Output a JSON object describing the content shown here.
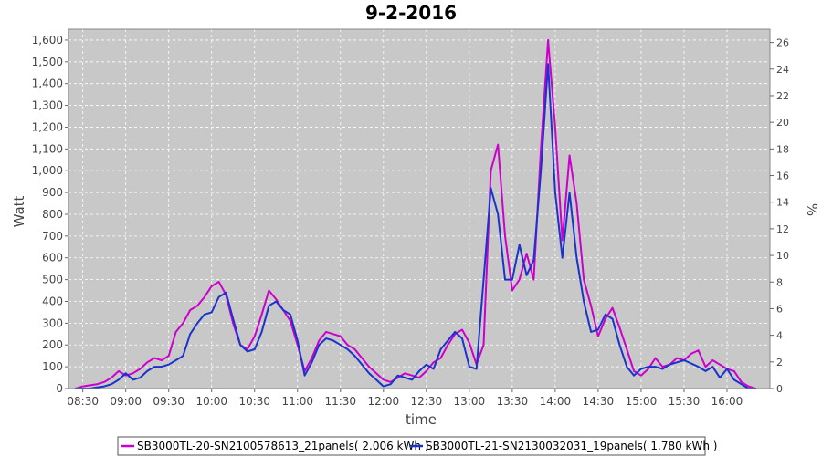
{
  "chart_data": {
    "type": "line",
    "title": "9-2-2016",
    "xlabel": "time",
    "ylabel": "Watt",
    "y2label": "%",
    "ylim": [
      0,
      1650
    ],
    "y2lim": [
      0,
      27
    ],
    "xlim": [
      "08:20",
      "16:30"
    ],
    "x_ticks": [
      "08:30",
      "09:00",
      "09:30",
      "10:00",
      "10:30",
      "11:00",
      "11:30",
      "12:00",
      "12:30",
      "13:00",
      "13:30",
      "14:00",
      "14:30",
      "15:00",
      "15:30",
      "16:00"
    ],
    "y_ticks": [
      "0",
      "100",
      "200",
      "300",
      "400",
      "500",
      "600",
      "700",
      "800",
      "900",
      "1,000",
      "1,100",
      "1,200",
      "1,300",
      "1,400",
      "1,500",
      "1,600"
    ],
    "y2_ticks": [
      "0",
      "2",
      "4",
      "6",
      "8",
      "10",
      "12",
      "14",
      "16",
      "18",
      "20",
      "22",
      "24",
      "26"
    ],
    "grid": true,
    "legend_position": "bottom",
    "plot_background": "#c8c8c8",
    "series": [
      {
        "name": "SB3000TL-20-SN2100578613_21panels( 2.006 kWh )",
        "color": "#cc00cc",
        "x": [
          "08:25",
          "08:30",
          "08:35",
          "08:40",
          "08:45",
          "08:50",
          "08:55",
          "09:00",
          "09:05",
          "09:10",
          "09:15",
          "09:20",
          "09:25",
          "09:30",
          "09:35",
          "09:40",
          "09:45",
          "09:50",
          "09:55",
          "10:00",
          "10:05",
          "10:10",
          "10:15",
          "10:20",
          "10:25",
          "10:30",
          "10:35",
          "10:40",
          "10:45",
          "10:50",
          "10:55",
          "11:00",
          "11:05",
          "11:10",
          "11:15",
          "11:20",
          "11:25",
          "11:30",
          "11:35",
          "11:40",
          "11:45",
          "11:50",
          "11:55",
          "12:00",
          "12:05",
          "12:10",
          "12:15",
          "12:20",
          "12:25",
          "12:30",
          "12:35",
          "12:40",
          "12:45",
          "12:50",
          "12:55",
          "13:00",
          "13:05",
          "13:10",
          "13:15",
          "13:20",
          "13:25",
          "13:30",
          "13:35",
          "13:40",
          "13:45",
          "13:50",
          "13:55",
          "14:00",
          "14:05",
          "14:10",
          "14:15",
          "14:20",
          "14:25",
          "14:30",
          "14:35",
          "14:40",
          "14:45",
          "14:50",
          "14:55",
          "15:00",
          "15:05",
          "15:10",
          "15:15",
          "15:20",
          "15:25",
          "15:30",
          "15:35",
          "15:40",
          "15:45",
          "15:50",
          "15:55",
          "16:00",
          "16:05",
          "16:10",
          "16:15",
          "16:20"
        ],
        "values": [
          0,
          10,
          15,
          20,
          30,
          50,
          80,
          60,
          70,
          90,
          120,
          140,
          130,
          150,
          260,
          300,
          360,
          380,
          420,
          470,
          490,
          430,
          300,
          200,
          180,
          240,
          340,
          450,
          410,
          360,
          310,
          200,
          80,
          140,
          220,
          260,
          250,
          240,
          200,
          180,
          140,
          100,
          70,
          40,
          30,
          50,
          70,
          60,
          50,
          80,
          120,
          140,
          200,
          250,
          270,
          210,
          110,
          200,
          1000,
          1120,
          700,
          450,
          500,
          620,
          500,
          1100,
          1600,
          1200,
          680,
          1070,
          850,
          500,
          380,
          240,
          320,
          370,
          280,
          180,
          80,
          60,
          90,
          140,
          100,
          110,
          140,
          130,
          160,
          175,
          100,
          130,
          110,
          90,
          80,
          30,
          10,
          0
        ]
      },
      {
        "name": "SB3000TL-21-SN2130032031_19panels( 1.780 kWh )",
        "color": "#1a33cc",
        "x": [
          "08:25",
          "08:30",
          "08:35",
          "08:40",
          "08:45",
          "08:50",
          "08:55",
          "09:00",
          "09:05",
          "09:10",
          "09:15",
          "09:20",
          "09:25",
          "09:30",
          "09:35",
          "09:40",
          "09:45",
          "09:50",
          "09:55",
          "10:00",
          "10:05",
          "10:10",
          "10:15",
          "10:20",
          "10:25",
          "10:30",
          "10:35",
          "10:40",
          "10:45",
          "10:50",
          "10:55",
          "11:00",
          "11:05",
          "11:10",
          "11:15",
          "11:20",
          "11:25",
          "11:30",
          "11:35",
          "11:40",
          "11:45",
          "11:50",
          "11:55",
          "12:00",
          "12:05",
          "12:10",
          "12:15",
          "12:20",
          "12:25",
          "12:30",
          "12:35",
          "12:40",
          "12:45",
          "12:50",
          "12:55",
          "13:00",
          "13:05",
          "13:10",
          "13:15",
          "13:20",
          "13:25",
          "13:30",
          "13:35",
          "13:40",
          "13:45",
          "13:50",
          "13:55",
          "14:00",
          "14:05",
          "14:10",
          "14:15",
          "14:20",
          "14:25",
          "14:30",
          "14:35",
          "14:40",
          "14:45",
          "14:50",
          "14:55",
          "15:00",
          "15:05",
          "15:10",
          "15:15",
          "15:20",
          "15:25",
          "15:30",
          "15:35",
          "15:40",
          "15:45",
          "15:50",
          "15:55",
          "16:00",
          "16:05",
          "16:10",
          "16:15",
          "16:20"
        ],
        "values": [
          0,
          0,
          0,
          5,
          10,
          20,
          40,
          70,
          40,
          50,
          80,
          100,
          100,
          110,
          130,
          150,
          250,
          300,
          340,
          350,
          420,
          440,
          320,
          200,
          170,
          180,
          260,
          380,
          400,
          360,
          340,
          220,
          60,
          120,
          200,
          230,
          220,
          200,
          180,
          150,
          110,
          70,
          40,
          10,
          20,
          60,
          50,
          40,
          80,
          110,
          90,
          180,
          220,
          260,
          230,
          100,
          90,
          500,
          920,
          800,
          500,
          500,
          660,
          520,
          590,
          1000,
          1490,
          900,
          600,
          900,
          600,
          400,
          260,
          270,
          340,
          320,
          200,
          100,
          60,
          90,
          100,
          100,
          90,
          110,
          120,
          130,
          115,
          100,
          80,
          100,
          50,
          90,
          40,
          20,
          0,
          0
        ]
      }
    ]
  }
}
